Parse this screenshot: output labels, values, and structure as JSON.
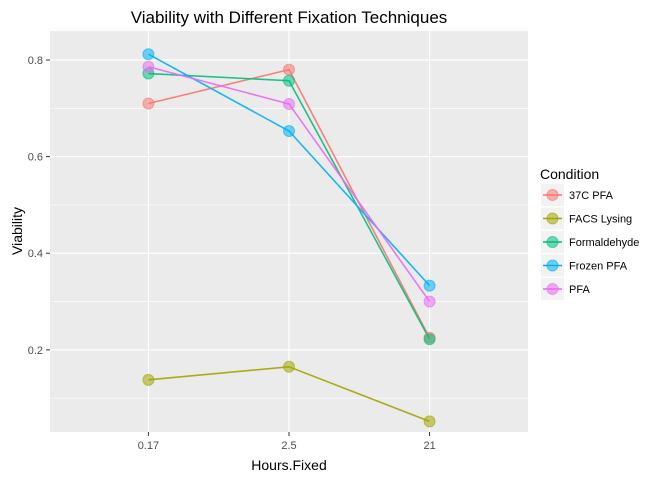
{
  "chart_data": {
    "type": "line",
    "title": "Viability with Different Fixation Techniques",
    "xlabel": "Hours.Fixed",
    "ylabel": "Viability",
    "categories": [
      "0.17",
      "2.5",
      "21"
    ],
    "y_ticks": [
      "0.2",
      "0.4",
      "0.6",
      "0.8"
    ],
    "y_tick_values": [
      0.2,
      0.4,
      0.6,
      0.8
    ],
    "ylim": [
      0.03,
      0.86
    ],
    "grid": true,
    "legend_position": "right",
    "legend_title": "Condition",
    "series": [
      {
        "name": "37C PFA",
        "color": "#F8766D",
        "values": [
          0.71,
          0.78,
          0.225
        ]
      },
      {
        "name": "FACS Lysing",
        "color": "#A3A500",
        "values": [
          0.138,
          0.165,
          0.052
        ]
      },
      {
        "name": "Formaldehyde",
        "color": "#00BF7D",
        "values": [
          0.772,
          0.757,
          0.222
        ]
      },
      {
        "name": "Frozen PFA",
        "color": "#00B0F6",
        "values": [
          0.812,
          0.653,
          0.333
        ]
      },
      {
        "name": "PFA",
        "color": "#E76BF3",
        "values": [
          0.786,
          0.709,
          0.3
        ]
      }
    ]
  }
}
